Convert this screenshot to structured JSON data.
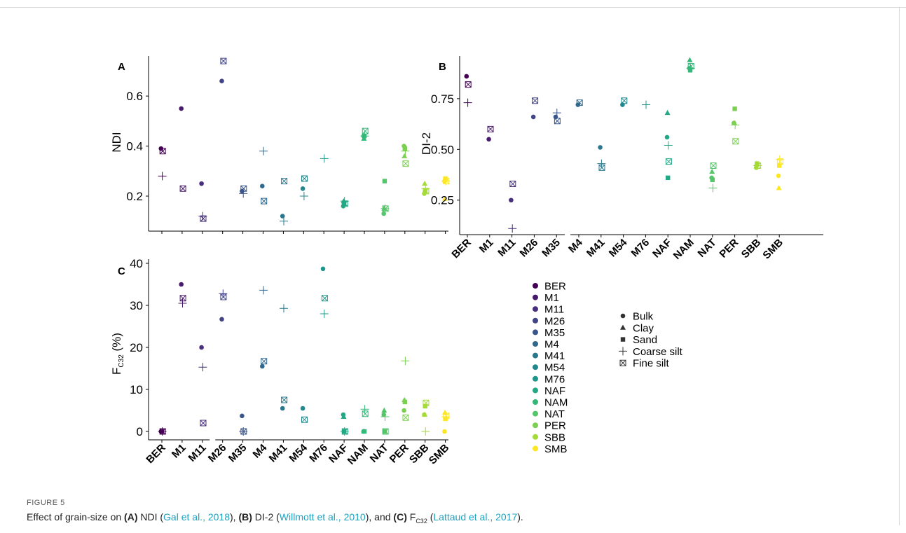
{
  "figure": {
    "label": "FIGURE 5",
    "caption": [
      {
        "t": "Effect of grain-size on ",
        "s": "plain"
      },
      {
        "t": "(A)",
        "s": "b"
      },
      {
        "t": " NDI (",
        "s": "plain"
      },
      {
        "t": "Gal et al., 2018",
        "s": "ref"
      },
      {
        "t": "), ",
        "s": "plain"
      },
      {
        "t": "(B)",
        "s": "b"
      },
      {
        "t": " DI-2 (",
        "s": "plain"
      },
      {
        "t": "Willmott et al., 2010",
        "s": "ref"
      },
      {
        "t": "), and ",
        "s": "plain"
      },
      {
        "t": "(C)",
        "s": "b"
      },
      {
        "t": " F",
        "s": "plain"
      },
      {
        "t": "C32",
        "s": "sub"
      },
      {
        "t": " (",
        "s": "plain"
      },
      {
        "t": "Lattaud et al., 2017",
        "s": "ref"
      },
      {
        "t": ").",
        "s": "plain"
      }
    ]
  },
  "legend": {
    "sites": [
      "BER",
      "M1",
      "M11",
      "M26",
      "M35",
      "M4",
      "M41",
      "M54",
      "M76",
      "NAF",
      "NAM",
      "NAT",
      "PER",
      "SBB",
      "SMB"
    ],
    "colors": [
      "#440154",
      "#481a6c",
      "#472f7d",
      "#414487",
      "#39568c",
      "#31688e",
      "#2a788e",
      "#23888e",
      "#1f988b",
      "#22a884",
      "#35b779",
      "#54c568",
      "#7ad151",
      "#a5db36",
      "#fde725"
    ],
    "fractions": [
      "Bulk",
      "Clay",
      "Sand",
      "Coarse silt",
      "Fine silt"
    ],
    "fraction_shapes": [
      "circle",
      "triangle",
      "square",
      "plus",
      "boxx"
    ]
  },
  "chart_data": [
    {
      "type": "scatter",
      "panel": "A",
      "ylabel": "NDI",
      "categories": [
        "BER",
        "M1",
        "M11",
        "M26",
        "M35",
        "M4",
        "M41",
        "M54",
        "M76",
        "NAF",
        "NAM",
        "NAT",
        "PER",
        "SBB",
        "SMB"
      ],
      "yticks": [
        0.2,
        0.4,
        0.6
      ],
      "ylim": [
        0.06,
        0.76
      ],
      "series": [
        {
          "name": "Bulk",
          "values": [
            0.39,
            0.55,
            0.25,
            0.66,
            0.22,
            0.24,
            0.12,
            0.23,
            null,
            0.16,
            0.44,
            0.13,
            0.4,
            0.21,
            0.26
          ]
        },
        {
          "name": "Clay",
          "values": [
            null,
            null,
            null,
            null,
            null,
            null,
            null,
            null,
            null,
            0.18,
            0.43,
            0.15,
            0.36,
            0.25,
            0.19
          ]
        },
        {
          "name": "Sand",
          "values": [
            null,
            null,
            null,
            null,
            null,
            null,
            null,
            null,
            null,
            0.17,
            0.44,
            0.26,
            0.39,
            0.22,
            0.27
          ]
        },
        {
          "name": "Coarse silt",
          "values": [
            0.28,
            null,
            0.12,
            null,
            0.21,
            0.38,
            0.1,
            0.2,
            0.35,
            0.18,
            0.44,
            0.15,
            0.38,
            0.23,
            0.26
          ]
        },
        {
          "name": "Fine silt",
          "values": [
            0.38,
            0.23,
            0.11,
            0.74,
            0.23,
            0.18,
            0.26,
            0.27,
            null,
            0.17,
            0.46,
            0.15,
            0.33,
            0.22,
            0.26
          ]
        }
      ]
    },
    {
      "type": "scatter",
      "panel": "B",
      "ylabel": "DI-2",
      "categories": [
        "BER",
        "M1",
        "M11",
        "M26",
        "M35",
        "M4",
        "M41",
        "M54",
        "M76",
        "NAF",
        "NAM",
        "NAT",
        "PER",
        "SBB",
        "SMB"
      ],
      "yticks": [
        0.25,
        0.5,
        0.75
      ],
      "yticklabels": [
        "0.25",
        "0.50",
        "0.75"
      ],
      "ylim": [
        0.08,
        0.96
      ],
      "series": [
        {
          "name": "Bulk",
          "values": [
            0.86,
            0.55,
            0.25,
            0.66,
            0.66,
            0.72,
            0.51,
            0.72,
            null,
            0.56,
            0.9,
            0.36,
            0.63,
            0.41,
            0.37
          ]
        },
        {
          "name": "Clay",
          "values": [
            null,
            null,
            null,
            null,
            null,
            null,
            null,
            null,
            null,
            0.68,
            0.94,
            0.39,
            0.63,
            0.43,
            0.31
          ]
        },
        {
          "name": "Sand",
          "values": [
            null,
            null,
            null,
            null,
            null,
            null,
            null,
            null,
            null,
            0.36,
            0.89,
            0.35,
            0.7,
            0.43,
            0.42
          ]
        },
        {
          "name": "Coarse silt",
          "values": [
            0.73,
            null,
            0.11,
            null,
            0.68,
            null,
            0.43,
            null,
            0.72,
            0.52,
            0.9,
            0.31,
            0.62,
            0.42,
            0.45
          ]
        },
        {
          "name": "Fine silt",
          "values": [
            0.82,
            0.6,
            0.33,
            0.74,
            0.64,
            0.73,
            0.41,
            0.74,
            null,
            0.44,
            0.91,
            0.42,
            0.54,
            0.42,
            0.44
          ]
        }
      ]
    },
    {
      "type": "scatter",
      "panel": "C",
      "ylabel": "F",
      "ylabel_sub": "C32",
      "ylabel_suffix": " (%)",
      "categories": [
        "BER",
        "M1",
        "M11",
        "M26",
        "M35",
        "M4",
        "M41",
        "M54",
        "M76",
        "NAF",
        "NAM",
        "NAT",
        "PER",
        "SBB",
        "SMB"
      ],
      "yticks": [
        0,
        10,
        20,
        30,
        40
      ],
      "ylim": [
        -2,
        41
      ],
      "series": [
        {
          "name": "Bulk",
          "values": [
            0,
            35,
            20,
            26.7,
            3.7,
            15.5,
            5.5,
            5.5,
            38.7,
            4.0,
            0,
            4.0,
            5.0,
            4.0,
            0
          ]
        },
        {
          "name": "Clay",
          "values": [
            null,
            null,
            null,
            null,
            null,
            null,
            null,
            null,
            null,
            3.5,
            0,
            5.0,
            7.5,
            4.0,
            4.5
          ]
        },
        {
          "name": "Sand",
          "values": [
            0,
            null,
            null,
            null,
            null,
            null,
            null,
            null,
            null,
            0,
            0,
            0,
            7.0,
            6.0,
            3.0
          ]
        },
        {
          "name": "Coarse silt",
          "values": [
            0,
            30.5,
            15.3,
            32.8,
            0,
            33.6,
            29.3,
            null,
            28.0,
            0,
            5.3,
            3.5,
            16.8,
            0,
            3.5
          ]
        },
        {
          "name": "Fine silt",
          "values": [
            0,
            31.7,
            2.0,
            32.0,
            0,
            16.7,
            7.5,
            2.8,
            31.7,
            0,
            4.2,
            0,
            3.3,
            6.8,
            3.7
          ]
        }
      ]
    }
  ]
}
